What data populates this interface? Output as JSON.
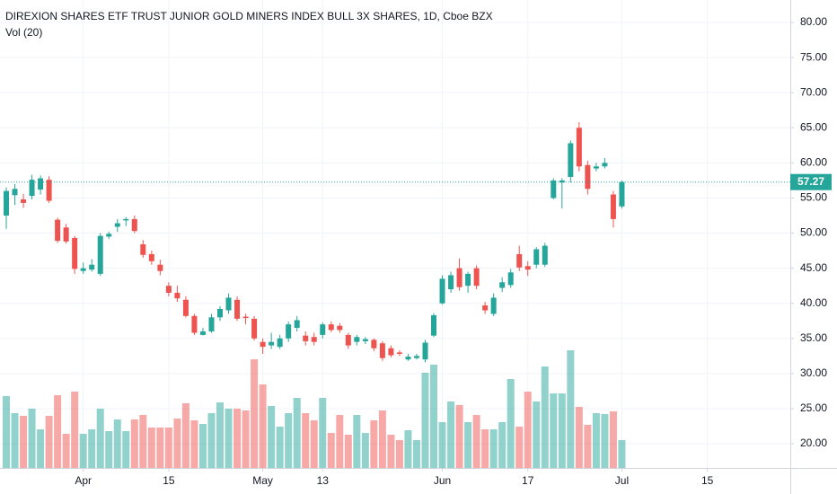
{
  "chart_data": {
    "type": "candlestick",
    "title": "DIREXION SHARES ETF TRUST JUNIOR GOLD MINERS INDEX BULL 3X SHARES, 1D, Cboe BZX",
    "indicator": "Vol (20)",
    "up_color": "#26a69a",
    "down_color": "#ef5350",
    "open": [
      52.5,
      55.4,
      54.8,
      55.3,
      56.2,
      57.6,
      51.9,
      50.8,
      49.3,
      44.6,
      44.8,
      44.2,
      49.5,
      50.9,
      51.8,
      52,
      48.4,
      47,
      45.5,
      42.5,
      41.5,
      40.5,
      38.2,
      35.5,
      36,
      38,
      39,
      40.5,
      38.1,
      37.8,
      34.5,
      34,
      33.8,
      35,
      36.5,
      35.4,
      35.2,
      35.5,
      37,
      36.8,
      35.5,
      34.5,
      34.6,
      34.8,
      34.3,
      33.6,
      33,
      32,
      32.2,
      32,
      35.4,
      40,
      42,
      45,
      42.5,
      45,
      39.7,
      38.5,
      42.2,
      42.6,
      47,
      45.3,
      45.5,
      45.5,
      55,
      57.2,
      58,
      65,
      59.7,
      59.2,
      59.5,
      55.5,
      53.8
    ],
    "high": [
      56.5,
      57,
      55.6,
      58.3,
      58.2,
      58.1,
      52.2,
      51.3,
      49.6,
      45.8,
      46.3,
      50,
      50.2,
      52,
      52.3,
      52.5,
      49,
      47.5,
      46.2,
      43,
      42.5,
      41,
      38.5,
      36.5,
      38.5,
      39.6,
      41.4,
      41,
      38.5,
      38.2,
      35,
      35.8,
      35.5,
      37.4,
      38.2,
      36,
      35.8,
      37.3,
      37.4,
      37.2,
      35.8,
      35.5,
      35.2,
      35,
      34.6,
      34,
      33.3,
      32.8,
      32.8,
      34.8,
      38.6,
      44,
      44.5,
      46.4,
      44.5,
      45.4,
      40.2,
      41.4,
      43.7,
      44.9,
      48.2,
      46,
      48,
      48.6,
      57.8,
      57.8,
      63.2,
      65.8,
      60.3,
      60,
      60.7,
      56,
      57.5
    ],
    "low": [
      50.6,
      54,
      53.6,
      54.8,
      55.5,
      54.3,
      48.6,
      48.5,
      44.2,
      44.2,
      44.5,
      43.9,
      49.2,
      50.2,
      51,
      50,
      46.5,
      45.5,
      44,
      41,
      40.2,
      38,
      35.5,
      35.4,
      35.8,
      37.5,
      38.5,
      37.5,
      37,
      34.7,
      32.8,
      33.5,
      33.5,
      34.5,
      36,
      34,
      34,
      35,
      35.9,
      35.8,
      33.5,
      34,
      34.2,
      33.2,
      31.8,
      32.3,
      32.5,
      31.8,
      32,
      31.6,
      35.2,
      39.8,
      41.5,
      41.8,
      41.5,
      42,
      38.5,
      38.2,
      41.6,
      42.2,
      44.6,
      43.9,
      45,
      45.2,
      54.8,
      53.5,
      57.2,
      58.8,
      55.5,
      58.8,
      59.2,
      50.8,
      53.5
    ],
    "close": [
      56,
      56.3,
      54.3,
      57.6,
      57.8,
      54.6,
      48.9,
      48.8,
      44.9,
      45,
      45.5,
      49.6,
      49.9,
      51.4,
      52,
      50.3,
      46.9,
      46,
      44.6,
      41.5,
      40.7,
      38.2,
      35.8,
      36,
      38,
      39.2,
      40.8,
      37.8,
      37.9,
      35,
      33.8,
      34.5,
      35,
      37,
      37.6,
      34.6,
      34.5,
      37,
      36.2,
      36.2,
      34,
      35.2,
      34.9,
      33.6,
      32.2,
      32.6,
      32.8,
      32.4,
      32.5,
      34.4,
      38.3,
      43.5,
      44,
      42.3,
      44.2,
      42.5,
      39,
      40.8,
      43,
      44.4,
      45.1,
      44.8,
      47.7,
      48.2,
      57.5,
      57.5,
      62.8,
      59.5,
      56.3,
      59.5,
      60,
      52,
      57.27
    ],
    "volume": [
      80,
      61,
      58,
      66,
      43,
      58,
      81,
      38,
      85,
      38,
      43,
      66,
      41,
      54,
      41,
      54,
      59,
      45,
      45,
      45,
      55,
      72,
      53,
      49,
      61,
      73,
      66,
      66,
      64,
      121,
      93,
      69,
      46,
      61,
      78,
      61,
      53,
      78,
      39,
      59,
      37,
      59,
      39,
      53,
      64,
      37,
      31,
      42,
      31,
      106,
      115,
      51,
      74,
      70,
      51,
      59,
      43,
      43,
      51,
      99,
      46,
      85,
      74,
      113,
      83,
      83,
      131,
      68,
      48,
      61,
      60,
      63,
      31
    ],
    "vlim": [
      0,
      160
    ],
    "xlim": [
      -0.735,
      91.7
    ],
    "xticks": [
      {
        "value": 9,
        "label": "Apr"
      },
      {
        "value": 19,
        "label": "15"
      },
      {
        "value": 30,
        "label": "May"
      },
      {
        "value": 37,
        "label": "13"
      },
      {
        "value": 51,
        "label": "Jun"
      },
      {
        "value": 61,
        "label": "17"
      },
      {
        "value": 72,
        "label": "Jul"
      },
      {
        "value": 82,
        "label": "15"
      }
    ],
    "ylim": [
      16.55,
      83.2
    ],
    "yticks": [
      {
        "value": 20,
        "label": "20.00"
      },
      {
        "value": 25,
        "label": "25.00"
      },
      {
        "value": 30,
        "label": "30.00"
      },
      {
        "value": 35,
        "label": "35.00"
      },
      {
        "value": 40,
        "label": "40.00"
      },
      {
        "value": 45,
        "label": "45.00"
      },
      {
        "value": 50,
        "label": "50.00"
      },
      {
        "value": 55,
        "label": "55.00"
      },
      {
        "value": 60,
        "label": "60.00"
      },
      {
        "value": 65,
        "label": "65.00"
      },
      {
        "value": 70,
        "label": "70.00"
      },
      {
        "value": 75,
        "label": "75.00"
      },
      {
        "value": 80,
        "label": "80.00"
      }
    ],
    "last_price": 57.27,
    "grid": true
  }
}
